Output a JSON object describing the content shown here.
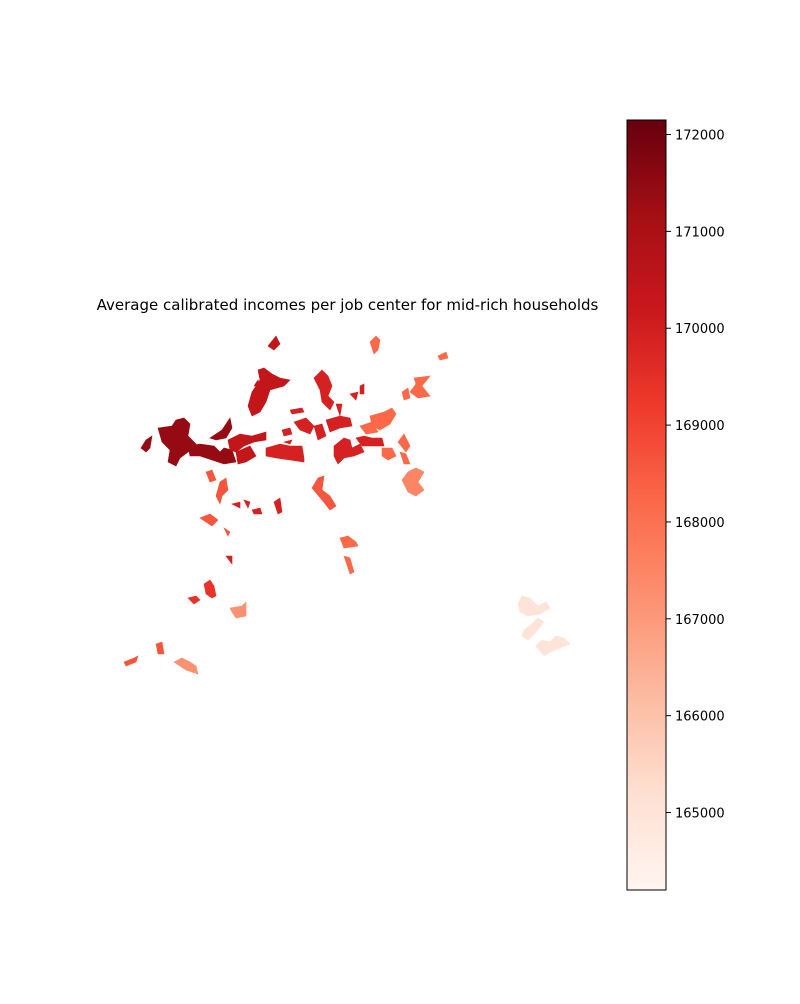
{
  "title": "Average calibrated incomes per job center for mid-rich households",
  "colorbar": {
    "colormap": "Reds",
    "min": 164200,
    "max": 172150,
    "ticks": [
      165000,
      166000,
      167000,
      168000,
      169000,
      170000,
      171000,
      172000
    ],
    "tick_labels": [
      "165000",
      "166000",
      "167000",
      "168000",
      "169000",
      "170000",
      "171000",
      "172000"
    ],
    "color_stops": [
      "#fff5f0",
      "#fee0d2",
      "#fcbba1",
      "#fc9272",
      "#fb6a4a",
      "#ef3b2c",
      "#cb181d",
      "#a50f15",
      "#67000d"
    ]
  },
  "regions": {
    "west_core": {
      "value": 171400
    },
    "northwest_spur": {
      "value": 170400
    },
    "central_belt": {
      "value": 169900
    },
    "northeast_cluster": {
      "value": 168200
    },
    "east_fringe": {
      "value": 167500
    },
    "south_central": {
      "value": 168600
    },
    "southwest_pocket": {
      "value": 169400
    },
    "southwest_edge": {
      "value": 167200
    },
    "southeast_outlier": {
      "value": 165000
    }
  }
}
